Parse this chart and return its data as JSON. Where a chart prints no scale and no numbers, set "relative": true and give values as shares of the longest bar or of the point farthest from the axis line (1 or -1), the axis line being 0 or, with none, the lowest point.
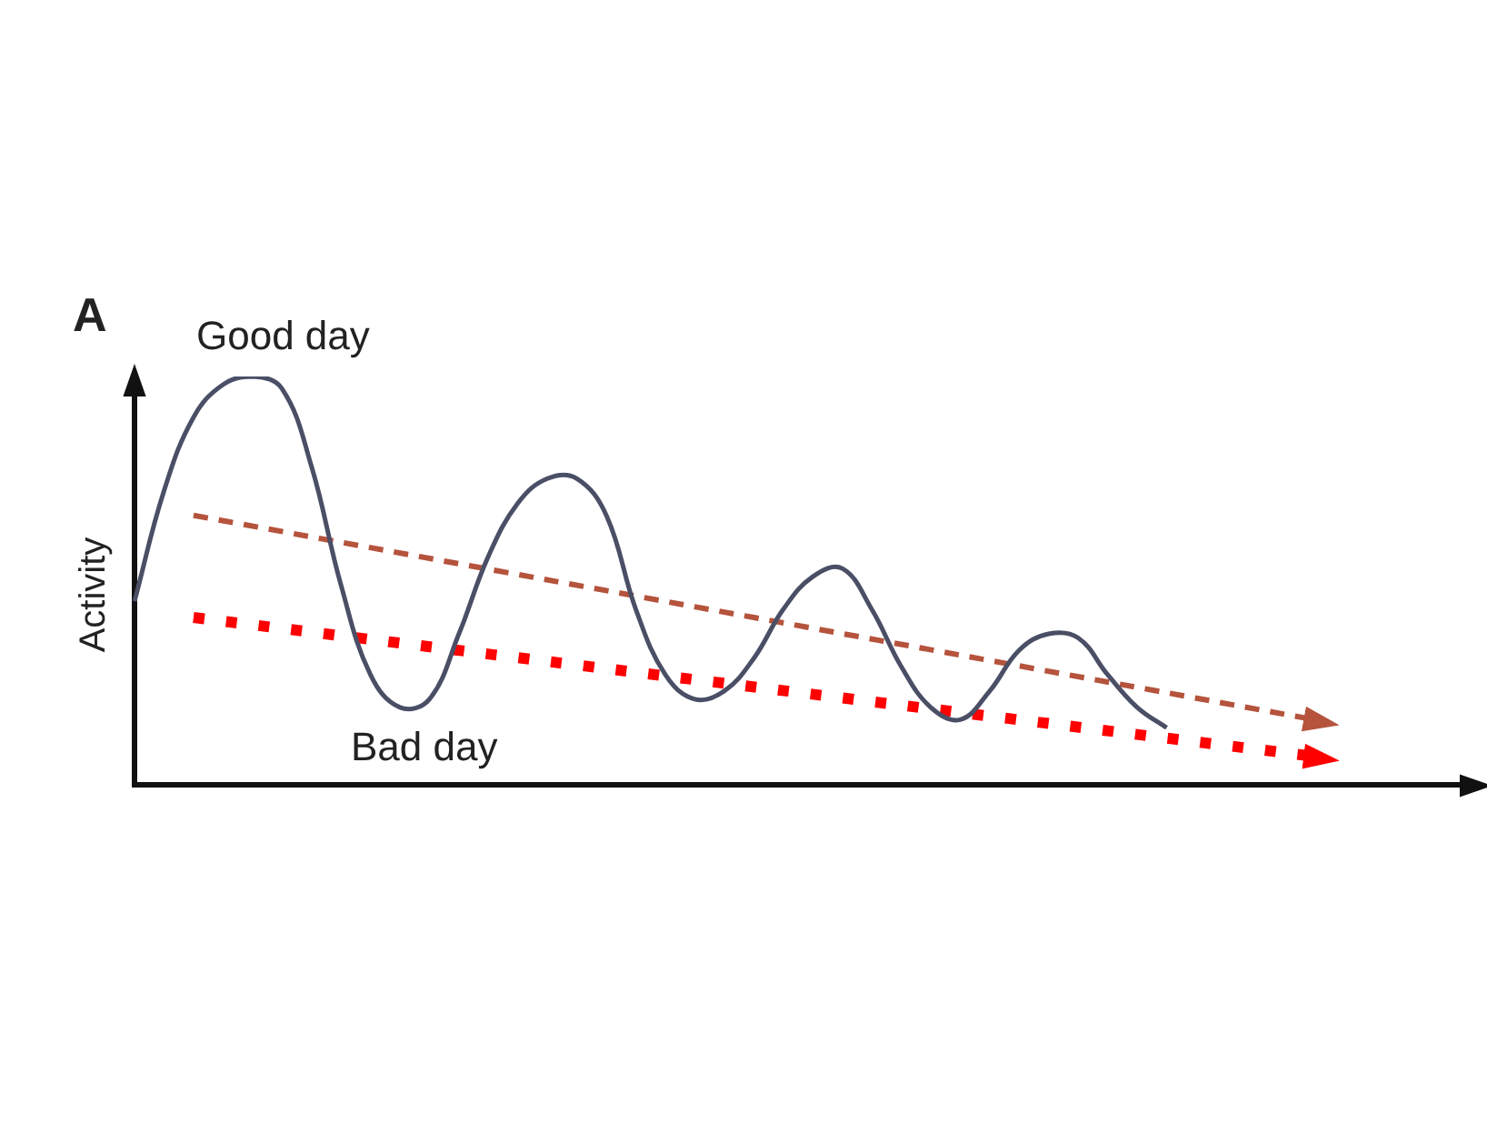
{
  "chart_data": {
    "type": "line",
    "relative": true,
    "ylabel": "Activity",
    "annotations": [
      "A",
      "Good day",
      "Bad day"
    ],
    "grid": false,
    "legend": false,
    "categories": [
      null,
      null,
      null,
      null,
      null,
      null,
      null,
      null,
      null,
      null,
      null,
      null,
      null,
      null,
      null,
      null,
      null,
      null,
      null,
      null,
      null,
      null,
      null,
      null,
      null,
      null,
      null,
      null,
      null,
      null,
      null,
      null,
      null,
      null,
      null,
      null,
      null,
      null,
      null,
      null,
      null,
      null,
      null,
      null,
      null,
      null
    ],
    "series": [
      {
        "color": "#4a4f66",
        "line_style": "solid",
        "values": [
          0.45,
          0.72,
          0.9,
          0.98,
          1,
          0.97,
          0.78,
          0.49,
          0.27,
          0.19,
          0.21,
          0.37,
          0.56,
          0.69,
          0.75,
          0.75,
          0.66,
          0.43,
          0.27,
          0.21,
          0.23,
          0.31,
          0.43,
          0.51,
          0.53,
          0.43,
          0.29,
          0.19,
          0.16,
          0.23,
          0.33,
          0.37,
          0.36,
          0.27,
          0.19,
          0.14,
          null,
          null,
          null,
          null,
          null,
          null,
          null,
          null,
          null,
          null
        ]
      },
      {
        "color": "#b5533c",
        "line_style": "dashed",
        "values": [
          null,
          null,
          0.66,
          null,
          null,
          null,
          null,
          null,
          null,
          null,
          null,
          null,
          null,
          null,
          null,
          null,
          null,
          null,
          null,
          null,
          null,
          null,
          null,
          null,
          null,
          null,
          null,
          null,
          null,
          null,
          null,
          null,
          null,
          null,
          null,
          null,
          null,
          null,
          null,
          null,
          0.16,
          null,
          null,
          null,
          null,
          null
        ]
      },
      {
        "color": "#ff0000",
        "line_style": "dotted",
        "values": [
          null,
          null,
          0.41,
          null,
          null,
          null,
          null,
          null,
          null,
          null,
          null,
          null,
          null,
          null,
          null,
          null,
          null,
          null,
          null,
          null,
          null,
          null,
          null,
          null,
          null,
          null,
          null,
          null,
          null,
          null,
          null,
          null,
          null,
          null,
          null,
          null,
          null,
          null,
          null,
          null,
          0.07,
          null,
          null,
          null,
          null,
          null
        ]
      }
    ]
  }
}
